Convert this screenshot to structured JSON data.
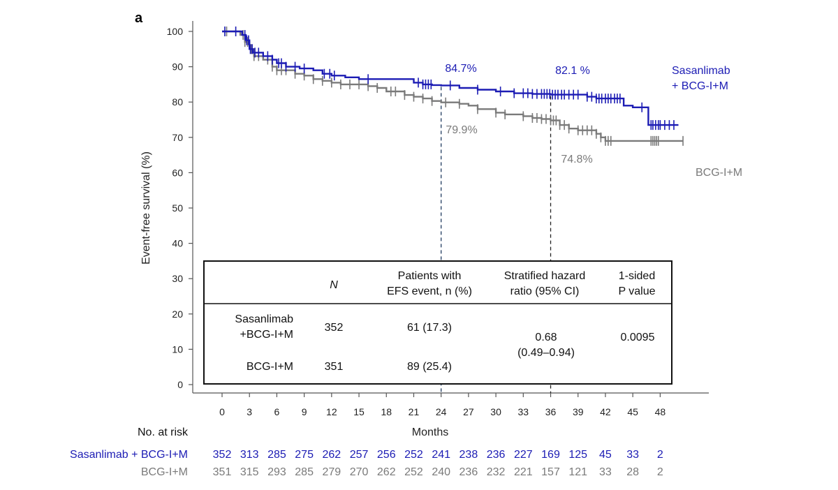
{
  "panel_label": "a",
  "chart_data": {
    "type": "line",
    "ylabel": "Event-free survival (%)",
    "xlabel": "Months",
    "xlim": [
      -3,
      51
    ],
    "ylim": [
      0,
      100
    ],
    "x_ticks": [
      0,
      3,
      6,
      9,
      12,
      15,
      18,
      21,
      24,
      27,
      30,
      33,
      36,
      39,
      42,
      45,
      48
    ],
    "y_ticks": [
      0,
      10,
      20,
      30,
      40,
      50,
      60,
      70,
      80,
      90,
      100
    ],
    "series": [
      {
        "name": "Sasanlimab + BCG-I+M",
        "label_lines": [
          "Sasanlimab",
          "+ BCG-I+M"
        ],
        "color": "#1c1cb4",
        "steps": [
          [
            0,
            100
          ],
          [
            2.2,
            99
          ],
          [
            2.6,
            97.5
          ],
          [
            3,
            95
          ],
          [
            3.4,
            94
          ],
          [
            4.5,
            93
          ],
          [
            5.5,
            92
          ],
          [
            6,
            91
          ],
          [
            7,
            90
          ],
          [
            8.5,
            89.5
          ],
          [
            10,
            89
          ],
          [
            11,
            88
          ],
          [
            12,
            87.5
          ],
          [
            13.5,
            87
          ],
          [
            15,
            86.5
          ],
          [
            21,
            85.5
          ],
          [
            22,
            85
          ],
          [
            23,
            84.8
          ],
          [
            24,
            84.7
          ],
          [
            26,
            84
          ],
          [
            28,
            83.5
          ],
          [
            30,
            83
          ],
          [
            32,
            82.5
          ],
          [
            34,
            82.3
          ],
          [
            36,
            82.1
          ],
          [
            40,
            81.5
          ],
          [
            41,
            81
          ],
          [
            44,
            79
          ],
          [
            45,
            78.5
          ],
          [
            46.5,
            78.5
          ],
          [
            46.7,
            73.5
          ],
          [
            50,
            73.5
          ]
        ],
        "censor_x": [
          0.3,
          1.5,
          2.5,
          2.7,
          2.9,
          3.1,
          3.3,
          3.6,
          4,
          5,
          5.5,
          6.2,
          6.5,
          7,
          8,
          9,
          11.2,
          11.8,
          12.3,
          16,
          21.5,
          22,
          22.3,
          22.6,
          22.9,
          25,
          28,
          30.5,
          32,
          33,
          33.5,
          34,
          34.5,
          35,
          35.3,
          35.6,
          35.9,
          36.2,
          36.5,
          36.8,
          37.2,
          37.5,
          38,
          38.5,
          39,
          40,
          40.5,
          41,
          41.3,
          41.6,
          42,
          42.3,
          42.6,
          43,
          43.3,
          43.6,
          46,
          47,
          47.2,
          47.5,
          47.8,
          48,
          48.5,
          49,
          49.5
        ],
        "milestones": [
          {
            "x": 24,
            "y": 84.7,
            "label": "84.7%"
          },
          {
            "x": 36,
            "y": 82.1,
            "label": "82.1 %"
          }
        ]
      },
      {
        "name": "BCG-I+M",
        "label_lines": [
          "BCG-I+M"
        ],
        "color": "#7a7a7a",
        "steps": [
          [
            0,
            100
          ],
          [
            2,
            99
          ],
          [
            2.5,
            97
          ],
          [
            3,
            95
          ],
          [
            3.5,
            93
          ],
          [
            4.5,
            92
          ],
          [
            5.5,
            90
          ],
          [
            6,
            89
          ],
          [
            8,
            88
          ],
          [
            9,
            87.5
          ],
          [
            10,
            86.5
          ],
          [
            11,
            86
          ],
          [
            12,
            85.5
          ],
          [
            13,
            85
          ],
          [
            16,
            84.5
          ],
          [
            17,
            84
          ],
          [
            18,
            83
          ],
          [
            20,
            82
          ],
          [
            21,
            81.5
          ],
          [
            22,
            81
          ],
          [
            23,
            80.3
          ],
          [
            24,
            79.9
          ],
          [
            26,
            79.5
          ],
          [
            27,
            79
          ],
          [
            28,
            78
          ],
          [
            30,
            77
          ],
          [
            31,
            76.5
          ],
          [
            33,
            76
          ],
          [
            34,
            75.5
          ],
          [
            35,
            75.2
          ],
          [
            36,
            74.8
          ],
          [
            37,
            73.5
          ],
          [
            38,
            72.5
          ],
          [
            39,
            72
          ],
          [
            41,
            71
          ],
          [
            41.5,
            70
          ],
          [
            42,
            69
          ],
          [
            50.5,
            69
          ]
        ],
        "censor_x": [
          0.5,
          2.3,
          2.5,
          2.8,
          3.2,
          3.5,
          4,
          5,
          5.5,
          6,
          6.5,
          7,
          8,
          9,
          10,
          11,
          12,
          13,
          14,
          15,
          16,
          17,
          18.5,
          19,
          20,
          21,
          22,
          23,
          24.5,
          26,
          28,
          30,
          31,
          33,
          34,
          34.5,
          35,
          35.5,
          36,
          36.3,
          36.6,
          37,
          37.5,
          38,
          39,
          39.5,
          40,
          40.5,
          41,
          41.5,
          42,
          42.3,
          42.6,
          47,
          47.2,
          47.4,
          47.6,
          47.8,
          50.5
        ],
        "milestones": [
          {
            "x": 24,
            "y": 79.9,
            "label": "79.9%"
          },
          {
            "x": 36,
            "y": 74.8,
            "label": "74.8%"
          }
        ]
      }
    ],
    "reference_lines_x": [
      24,
      36
    ],
    "table": {
      "headers": [
        [
          "",
          ""
        ],
        [
          "N",
          ""
        ],
        [
          "Patients with",
          "EFS event, n (%)"
        ],
        [
          "Stratified hazard",
          "ratio (95% CI)"
        ],
        [
          "1-sided",
          "P value"
        ]
      ],
      "rows": [
        {
          "arm": [
            "Sasanlimab",
            "+BCG-I+M"
          ],
          "n": "352",
          "events": "61 (17.3)"
        },
        {
          "arm": [
            "BCG-I+M"
          ],
          "n": "351",
          "events": "89 (25.4)"
        }
      ],
      "hazard_ratio": [
        "0.68",
        "(0.49–0.94)"
      ],
      "p_value": "0.0095"
    },
    "at_risk": {
      "title": "No. at risk",
      "rows": [
        {
          "label": "Sasanlimab + BCG-I+M",
          "color": "#1c1cb4",
          "values": [
            352,
            313,
            285,
            275,
            262,
            257,
            256,
            252,
            241,
            238,
            236,
            227,
            169,
            125,
            45,
            33,
            2
          ]
        },
        {
          "label": "BCG-I+M",
          "color": "#7a7a7a",
          "values": [
            351,
            315,
            293,
            285,
            279,
            270,
            262,
            252,
            240,
            236,
            232,
            221,
            157,
            121,
            33,
            28,
            2
          ]
        }
      ]
    }
  }
}
